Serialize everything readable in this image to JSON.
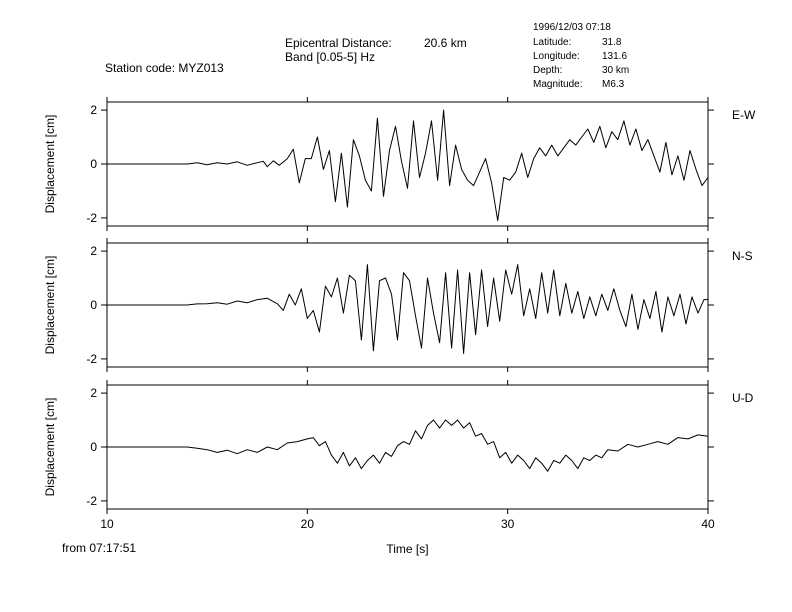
{
  "header": {
    "station": "Station code: MYZ013",
    "epicentral_label": "Epicentral Distance:",
    "epicentral_value": "20.6 km",
    "band": "Band [0.05-5] Hz",
    "event": {
      "datetime": "1996/12/03 07:18",
      "latitude_label": "Latitude:",
      "latitude": "31.8",
      "longitude_label": "Longitude:",
      "longitude": "131.6",
      "depth_label": "Depth:",
      "depth": "30 km",
      "magnitude_label": "Magnitude:",
      "magnitude": "M6.3"
    }
  },
  "footer": {
    "from": "from 07:17:51"
  },
  "chart_data": [
    {
      "type": "line",
      "component": "E-W",
      "ylabel": "Displacement [cm]",
      "xlabel": "",
      "xlim": [
        10,
        40
      ],
      "ylim": [
        -2.3,
        2.3
      ],
      "yticks": [
        -2,
        0,
        2
      ],
      "x": [
        10,
        13,
        14,
        14.5,
        15,
        15.5,
        16,
        16.5,
        17,
        17.5,
        17.8,
        18,
        18.3,
        18.6,
        19,
        19.3,
        19.6,
        19.9,
        20.2,
        20.5,
        20.8,
        21.1,
        21.4,
        21.7,
        22,
        22.3,
        22.6,
        22.9,
        23.2,
        23.5,
        23.8,
        24.1,
        24.4,
        24.7,
        25,
        25.3,
        25.6,
        25.9,
        26.2,
        26.5,
        26.8,
        27.1,
        27.4,
        27.7,
        28,
        28.3,
        28.6,
        28.9,
        29.2,
        29.5,
        29.8,
        30.1,
        30.4,
        30.7,
        31,
        31.3,
        31.6,
        31.9,
        32.2,
        32.5,
        32.8,
        33.1,
        33.4,
        33.7,
        34,
        34.3,
        34.6,
        34.9,
        35.2,
        35.5,
        35.8,
        36.1,
        36.4,
        36.7,
        37,
        37.3,
        37.6,
        37.9,
        38.2,
        38.5,
        38.8,
        39.1,
        39.4,
        39.7,
        40
      ],
      "y": [
        0,
        0,
        0,
        0.05,
        -0.03,
        0.05,
        0,
        0.08,
        -0.05,
        0.05,
        0.1,
        -0.1,
        0.12,
        -0.05,
        0.2,
        0.55,
        -0.7,
        0.2,
        0.2,
        1.0,
        -0.2,
        0.5,
        -1.4,
        0.4,
        -1.6,
        0.9,
        0.3,
        -0.6,
        -1.0,
        1.7,
        -1.2,
        0.5,
        1.4,
        0.1,
        -0.9,
        1.6,
        -0.5,
        0.4,
        1.6,
        -0.6,
        2.0,
        -0.8,
        0.7,
        -0.2,
        -0.6,
        -0.8,
        -0.3,
        0.2,
        -0.7,
        -2.1,
        -0.5,
        -0.6,
        -0.3,
        0.4,
        -0.5,
        0.2,
        0.6,
        0.3,
        0.7,
        0.3,
        0.6,
        0.9,
        0.7,
        1.0,
        1.3,
        0.8,
        1.4,
        0.6,
        1.2,
        0.9,
        1.6,
        0.7,
        1.3,
        0.5,
        0.9,
        0.3,
        -0.3,
        0.8,
        -0.4,
        0.3,
        -0.6,
        0.5,
        -0.2,
        -0.8,
        -0.5
      ]
    },
    {
      "type": "line",
      "component": "N-S",
      "ylabel": "Displacement [cm]",
      "xlabel": "",
      "xlim": [
        10,
        40
      ],
      "ylim": [
        -2.3,
        2.3
      ],
      "yticks": [
        -2,
        0,
        2
      ],
      "x": [
        10,
        13,
        14,
        14.5,
        15,
        15.5,
        16,
        16.5,
        17,
        17.5,
        18,
        18.5,
        18.8,
        19.1,
        19.4,
        19.7,
        20,
        20.3,
        20.6,
        20.9,
        21.2,
        21.5,
        21.8,
        22.1,
        22.4,
        22.7,
        23,
        23.3,
        23.6,
        23.9,
        24.2,
        24.5,
        24.8,
        25.1,
        25.4,
        25.7,
        26,
        26.3,
        26.6,
        26.9,
        27.2,
        27.5,
        27.8,
        28.1,
        28.4,
        28.7,
        29,
        29.3,
        29.6,
        29.9,
        30.2,
        30.5,
        30.8,
        31.1,
        31.4,
        31.7,
        32,
        32.3,
        32.6,
        32.9,
        33.2,
        33.5,
        33.8,
        34.1,
        34.4,
        34.7,
        35,
        35.3,
        35.6,
        35.9,
        36.2,
        36.5,
        36.8,
        37.1,
        37.4,
        37.7,
        38,
        38.3,
        38.6,
        38.9,
        39.2,
        39.5,
        39.8,
        40
      ],
      "y": [
        0,
        0,
        0,
        0.04,
        0.05,
        0.08,
        0.03,
        0.15,
        0.08,
        0.2,
        0.25,
        0.05,
        -0.2,
        0.4,
        0.0,
        0.6,
        -0.5,
        -0.2,
        -1.0,
        0.7,
        0.3,
        1.0,
        -0.3,
        1.1,
        0.9,
        -1.3,
        1.5,
        -1.7,
        0.9,
        1.0,
        0.4,
        -1.3,
        1.2,
        0.9,
        -0.4,
        -1.6,
        1.0,
        -0.3,
        -1.4,
        1.2,
        -1.6,
        1.3,
        -1.8,
        1.2,
        -1.1,
        1.3,
        -0.8,
        1.0,
        -0.6,
        1.3,
        0.4,
        1.5,
        -0.4,
        0.6,
        -0.5,
        1.2,
        -0.3,
        1.3,
        -0.4,
        0.8,
        -0.3,
        0.5,
        -0.5,
        0.3,
        -0.4,
        0.4,
        -0.2,
        0.6,
        -0.2,
        -0.8,
        0.4,
        -0.9,
        0.2,
        -0.5,
        0.5,
        -1.0,
        0.3,
        -0.4,
        0.4,
        -0.7,
        0.3,
        -0.3,
        0.2,
        0.2
      ]
    },
    {
      "type": "line",
      "component": "U-D",
      "ylabel": "Displacement [cm]",
      "xlabel": "Time [s]",
      "xlim": [
        10,
        40
      ],
      "ylim": [
        -2.3,
        2.3
      ],
      "yticks": [
        -2,
        0,
        2
      ],
      "xticks": [
        10,
        20,
        30,
        40
      ],
      "x": [
        10,
        14,
        14.5,
        15,
        15.5,
        16,
        16.5,
        17,
        17.5,
        18,
        18.5,
        19,
        19.5,
        20,
        20.3,
        20.6,
        20.9,
        21.2,
        21.5,
        21.8,
        22.1,
        22.4,
        22.7,
        23,
        23.3,
        23.6,
        23.9,
        24.2,
        24.5,
        24.8,
        25.1,
        25.4,
        25.7,
        26,
        26.3,
        26.6,
        26.9,
        27.2,
        27.5,
        27.8,
        28.1,
        28.4,
        28.7,
        29,
        29.3,
        29.6,
        29.9,
        30.2,
        30.5,
        30.8,
        31.1,
        31.4,
        31.7,
        32,
        32.3,
        32.6,
        32.9,
        33.2,
        33.5,
        33.8,
        34.1,
        34.4,
        34.7,
        35,
        35.5,
        36,
        36.5,
        37,
        37.5,
        38,
        38.5,
        39,
        39.5,
        40
      ],
      "y": [
        0,
        0,
        -0.05,
        -0.1,
        -0.2,
        -0.12,
        -0.25,
        -0.1,
        -0.2,
        0.0,
        -0.1,
        0.15,
        0.2,
        0.3,
        0.35,
        0.05,
        0.2,
        -0.3,
        -0.6,
        -0.2,
        -0.7,
        -0.4,
        -0.8,
        -0.5,
        -0.3,
        -0.6,
        -0.2,
        -0.35,
        0.05,
        0.2,
        0.1,
        0.6,
        0.3,
        0.8,
        1.0,
        0.7,
        1.0,
        0.8,
        1.0,
        0.7,
        0.9,
        0.4,
        0.5,
        0.1,
        0.2,
        -0.4,
        -0.2,
        -0.6,
        -0.3,
        -0.5,
        -0.8,
        -0.4,
        -0.6,
        -0.9,
        -0.5,
        -0.6,
        -0.3,
        -0.5,
        -0.8,
        -0.4,
        -0.5,
        -0.3,
        -0.4,
        -0.1,
        -0.15,
        0.1,
        0.0,
        0.1,
        0.2,
        0.1,
        0.35,
        0.3,
        0.45,
        0.4
      ]
    }
  ]
}
